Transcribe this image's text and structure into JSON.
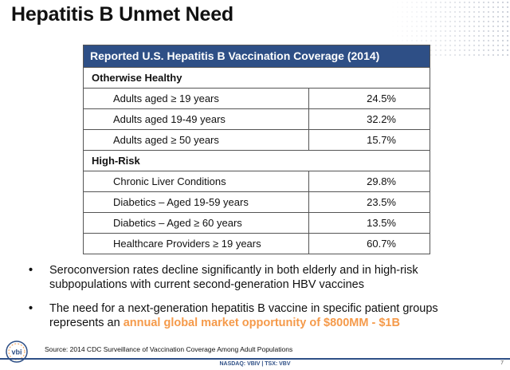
{
  "title": "Hepatitis B Unmet Need",
  "table": {
    "header": "Reported U.S. Hepatitis B Vaccination Coverage (2014)",
    "sections": [
      {
        "name": "Otherwise Healthy",
        "rows": [
          {
            "label": "Adults aged ≥ 19 years",
            "value": "24.5%"
          },
          {
            "label": "Adults aged 19-49 years",
            "value": "32.2%"
          },
          {
            "label": "Adults aged ≥ 50 years",
            "value": "15.7%"
          }
        ]
      },
      {
        "name": "High-Risk",
        "rows": [
          {
            "label": "Chronic Liver Conditions",
            "value": "29.8%"
          },
          {
            "label": "Diabetics – Aged 19-59 years",
            "value": "23.5%"
          },
          {
            "label": "Diabetics – Aged ≥ 60 years",
            "value": "13.5%"
          },
          {
            "label": "Healthcare Providers ≥ 19 years",
            "value": "60.7%"
          }
        ]
      }
    ]
  },
  "bullets": {
    "b1": "Seroconversion rates decline significantly in both elderly and in high-risk subpopulations with current second-generation HBV vaccines",
    "b2_text": "The need for a next-generation hepatitis B vaccine in specific patient groups represents an ",
    "b2_highlight": "annual global market opportunity of $800MM - $1B"
  },
  "source": "Source: 2014 CDC Surveillance of Vaccination Coverage Among Adult Populations",
  "logo_text": "vbi",
  "footer": {
    "ticker": "NASDAQ: VBIV | TSX: VBV",
    "page": "7"
  },
  "colors": {
    "header_bg": "#2e4f86",
    "highlight": "#f59a4a"
  }
}
